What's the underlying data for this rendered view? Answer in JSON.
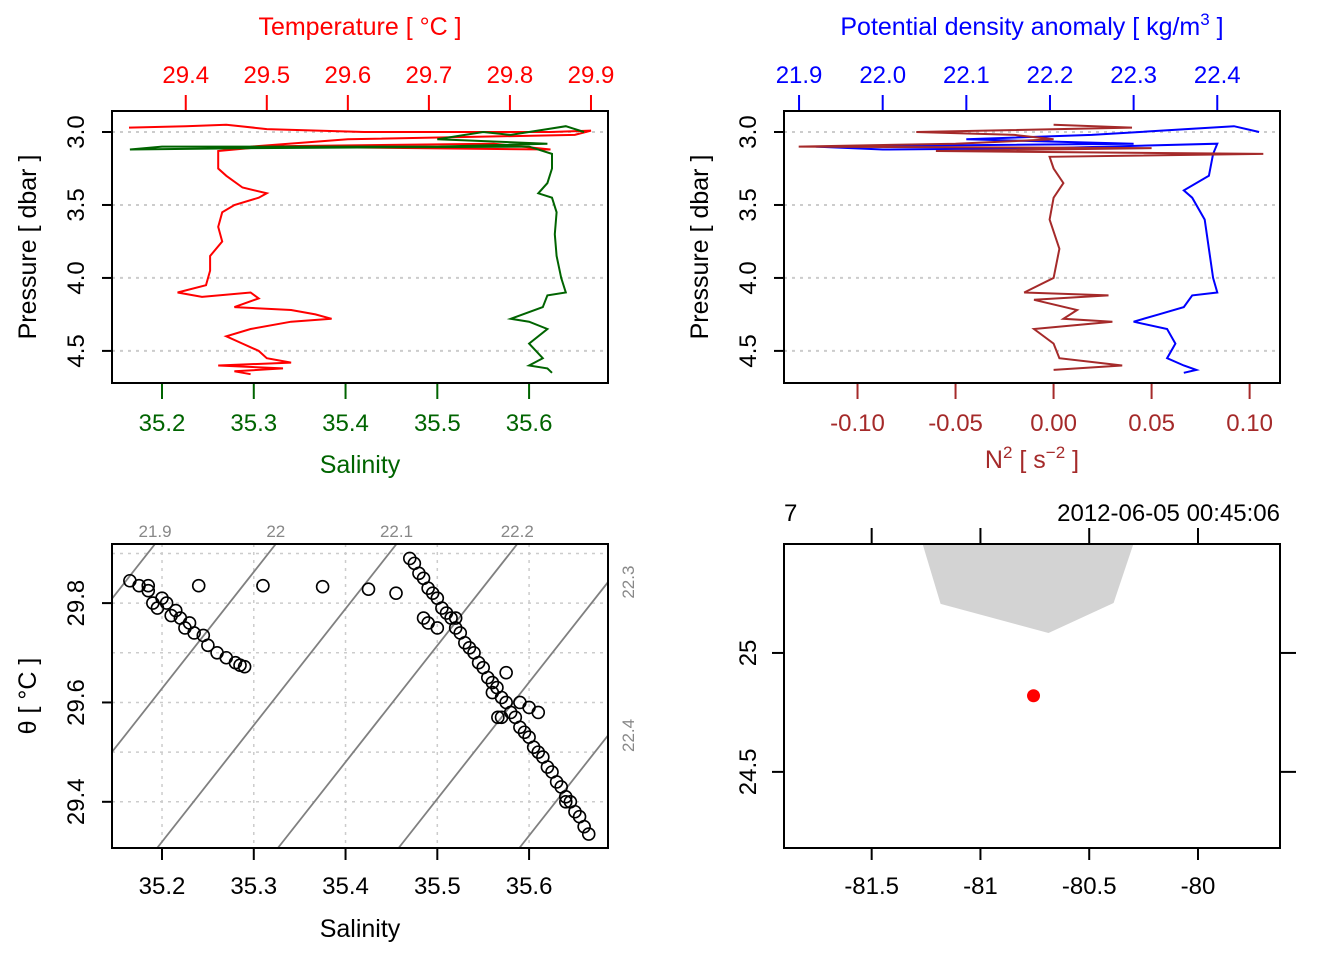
{
  "colors": {
    "temperature": "#ff0000",
    "salinity": "#006400",
    "density": "#0000ff",
    "n2": "#a52a2a",
    "grid": "#cccccc",
    "isopycnal": "#808080",
    "land": "#d3d3d3",
    "station": "#ff0000"
  },
  "chart_data": [
    {
      "type": "line",
      "panel": "profile-temperature-salinity",
      "ylabel": "Pressure [ dbar ]",
      "yticks": [
        3.0,
        3.5,
        4.0,
        4.5
      ],
      "ylim": [
        4.72,
        2.856
      ],
      "y_reversed": true,
      "grid": "horizontal dotted",
      "top_axis": {
        "label": "Temperature [ °C ]",
        "ticks": [
          29.4,
          29.5,
          29.6,
          29.7,
          29.8,
          29.9
        ],
        "lim": [
          29.309,
          29.921
        ]
      },
      "bottom_axis": {
        "label": "Salinity",
        "ticks": [
          35.2,
          35.3,
          35.4,
          35.5,
          35.6
        ],
        "lim": [
          35.1455,
          35.686
        ]
      },
      "series": [
        {
          "name": "Temperature",
          "axis": "top",
          "points": [
            [
              2.97,
              29.33
            ],
            [
              2.96,
              29.4
            ],
            [
              2.95,
              29.45
            ],
            [
              2.98,
              29.5
            ],
            [
              3.0,
              29.62
            ],
            [
              3.0,
              29.85
            ],
            [
              2.99,
              29.9
            ],
            [
              3.02,
              29.88
            ],
            [
              3.05,
              29.6
            ],
            [
              3.1,
              29.48
            ],
            [
              3.08,
              29.78
            ],
            [
              3.12,
              29.85
            ],
            [
              3.1,
              29.5
            ],
            [
              3.13,
              29.44
            ],
            [
              3.2,
              29.44
            ],
            [
              3.25,
              29.44
            ],
            [
              3.3,
              29.45
            ],
            [
              3.38,
              29.47
            ],
            [
              3.42,
              29.5
            ],
            [
              3.45,
              29.49
            ],
            [
              3.5,
              29.46
            ],
            [
              3.55,
              29.445
            ],
            [
              3.65,
              29.44
            ],
            [
              3.75,
              29.445
            ],
            [
              3.85,
              29.43
            ],
            [
              3.95,
              29.43
            ],
            [
              4.05,
              29.425
            ],
            [
              4.1,
              29.39
            ],
            [
              4.13,
              29.42
            ],
            [
              4.1,
              29.48
            ],
            [
              4.14,
              29.49
            ],
            [
              4.2,
              29.46
            ],
            [
              4.22,
              29.53
            ],
            [
              4.25,
              29.56
            ],
            [
              4.28,
              29.58
            ],
            [
              4.3,
              29.53
            ],
            [
              4.35,
              29.48
            ],
            [
              4.4,
              29.45
            ],
            [
              4.45,
              29.47
            ],
            [
              4.5,
              29.49
            ],
            [
              4.55,
              29.5
            ],
            [
              4.58,
              29.53
            ],
            [
              4.6,
              29.44
            ],
            [
              4.62,
              29.52
            ],
            [
              4.64,
              29.46
            ],
            [
              4.66,
              29.48
            ]
          ]
        },
        {
          "name": "Salinity",
          "axis": "bottom",
          "points": [
            [
              3.0,
              35.66
            ],
            [
              2.96,
              35.64
            ],
            [
              3.02,
              35.58
            ],
            [
              3.0,
              35.55
            ],
            [
              3.05,
              35.5
            ],
            [
              3.08,
              35.62
            ],
            [
              3.1,
              35.5
            ],
            [
              3.1,
              35.2
            ],
            [
              3.12,
              35.165
            ],
            [
              3.11,
              35.3
            ],
            [
              3.1,
              35.6
            ],
            [
              3.15,
              35.625
            ],
            [
              3.25,
              35.625
            ],
            [
              3.35,
              35.62
            ],
            [
              3.42,
              35.61
            ],
            [
              3.45,
              35.625
            ],
            [
              3.55,
              35.63
            ],
            [
              3.7,
              35.628
            ],
            [
              3.85,
              35.63
            ],
            [
              4.0,
              35.635
            ],
            [
              4.1,
              35.64
            ],
            [
              4.12,
              35.62
            ],
            [
              4.2,
              35.615
            ],
            [
              4.28,
              35.58
            ],
            [
              4.3,
              35.6
            ],
            [
              4.35,
              35.62
            ],
            [
              4.45,
              35.6
            ],
            [
              4.55,
              35.615
            ],
            [
              4.6,
              35.6
            ],
            [
              4.62,
              35.62
            ],
            [
              4.65,
              35.625
            ]
          ]
        }
      ]
    },
    {
      "type": "line",
      "panel": "profile-density-n2",
      "ylabel": "Pressure [ dbar ]",
      "yticks": [
        3.0,
        3.5,
        4.0,
        4.5
      ],
      "ylim": [
        4.72,
        2.856
      ],
      "y_reversed": true,
      "grid": "horizontal dotted",
      "top_axis": {
        "label_main": "Potential density anomaly [ kg/m",
        "label_sup": "3",
        "label_end": " ]",
        "ticks": [
          21.9,
          22.0,
          22.1,
          22.2,
          22.3,
          22.4
        ],
        "lim": [
          21.882,
          22.475
        ]
      },
      "bottom_axis": {
        "label_main": "N",
        "label_sup": "2",
        "label_mid": " [ s",
        "label_sup2": "−2",
        "label_end": " ]",
        "ticks": [
          -0.1,
          -0.05,
          0.0,
          0.05,
          0.1
        ],
        "lim": [
          -0.1375,
          0.1155
        ]
      },
      "series": [
        {
          "name": "Potential density anomaly",
          "axis": "top",
          "points": [
            [
              3.0,
              22.45
            ],
            [
              2.96,
              22.42
            ],
            [
              3.02,
              22.25
            ],
            [
              3.05,
              22.1
            ],
            [
              3.08,
              22.3
            ],
            [
              3.1,
              21.92
            ],
            [
              3.12,
              22.0
            ],
            [
              3.11,
              22.2
            ],
            [
              3.08,
              22.4
            ],
            [
              3.15,
              22.395
            ],
            [
              3.3,
              22.39
            ],
            [
              3.4,
              22.36
            ],
            [
              3.45,
              22.37
            ],
            [
              3.6,
              22.385
            ],
            [
              3.8,
              22.39
            ],
            [
              4.0,
              22.395
            ],
            [
              4.1,
              22.4
            ],
            [
              4.12,
              22.37
            ],
            [
              4.2,
              22.36
            ],
            [
              4.25,
              22.33
            ],
            [
              4.3,
              22.3
            ],
            [
              4.35,
              22.34
            ],
            [
              4.45,
              22.35
            ],
            [
              4.55,
              22.34
            ],
            [
              4.6,
              22.36
            ],
            [
              4.63,
              22.375
            ],
            [
              4.65,
              22.36
            ]
          ]
        },
        {
          "name": "N2",
          "axis": "bottom",
          "points": [
            [
              2.95,
              0.0
            ],
            [
              2.97,
              0.04
            ],
            [
              3.0,
              -0.07
            ],
            [
              3.02,
              -0.02
            ],
            [
              3.05,
              0.0
            ],
            [
              3.08,
              -0.05
            ],
            [
              3.1,
              -0.13
            ],
            [
              3.11,
              0.05
            ],
            [
              3.13,
              -0.06
            ],
            [
              3.15,
              0.107
            ],
            [
              3.17,
              -0.002
            ],
            [
              3.25,
              0.0
            ],
            [
              3.35,
              0.005
            ],
            [
              3.45,
              0.0
            ],
            [
              3.6,
              -0.002
            ],
            [
              3.8,
              0.003
            ],
            [
              4.0,
              0.0
            ],
            [
              4.1,
              -0.015
            ],
            [
              4.12,
              0.028
            ],
            [
              4.15,
              -0.01
            ],
            [
              4.22,
              0.012
            ],
            [
              4.28,
              0.005
            ],
            [
              4.3,
              0.03
            ],
            [
              4.35,
              -0.01
            ],
            [
              4.45,
              0.0
            ],
            [
              4.55,
              0.003
            ],
            [
              4.6,
              0.035
            ],
            [
              4.63,
              0.0
            ]
          ]
        }
      ]
    },
    {
      "type": "scatter",
      "panel": "ts-diagram",
      "xlabel": "Salinity",
      "ylabel": "θ [ °C ]",
      "xticks": [
        35.2,
        35.3,
        35.4,
        35.5,
        35.6
      ],
      "yticks": [
        29.4,
        29.6,
        29.8
      ],
      "xlim": [
        35.1455,
        35.686
      ],
      "ylim": [
        29.307,
        29.919
      ],
      "grid": "dotted",
      "isopycnals": [
        21.9,
        22.0,
        22.1,
        22.2,
        22.3,
        22.4
      ],
      "isopycnal_labels": [
        "21.9",
        "22",
        "22.1",
        "22.2",
        "22.3",
        "22.4"
      ],
      "points": [
        [
          35.165,
          29.845
        ],
        [
          35.175,
          29.835
        ],
        [
          35.185,
          29.825
        ],
        [
          35.19,
          29.8
        ],
        [
          35.195,
          29.79
        ],
        [
          35.205,
          29.8
        ],
        [
          35.21,
          29.775
        ],
        [
          35.22,
          29.77
        ],
        [
          35.225,
          29.75
        ],
        [
          35.235,
          29.74
        ],
        [
          35.245,
          29.735
        ],
        [
          35.25,
          29.715
        ],
        [
          35.26,
          29.7
        ],
        [
          35.27,
          29.69
        ],
        [
          35.28,
          29.68
        ],
        [
          35.29,
          29.672
        ],
        [
          35.285,
          29.675
        ],
        [
          35.2,
          29.81
        ],
        [
          35.215,
          29.785
        ],
        [
          35.23,
          29.76
        ],
        [
          35.185,
          29.835
        ],
        [
          35.24,
          29.835
        ],
        [
          35.31,
          29.835
        ],
        [
          35.375,
          29.833
        ],
        [
          35.425,
          29.828
        ],
        [
          35.455,
          29.82
        ],
        [
          35.47,
          29.89
        ],
        [
          35.475,
          29.88
        ],
        [
          35.48,
          29.86
        ],
        [
          35.485,
          29.85
        ],
        [
          35.49,
          29.83
        ],
        [
          35.495,
          29.82
        ],
        [
          35.5,
          29.81
        ],
        [
          35.505,
          29.79
        ],
        [
          35.51,
          29.78
        ],
        [
          35.515,
          29.77
        ],
        [
          35.52,
          29.75
        ],
        [
          35.525,
          29.74
        ],
        [
          35.53,
          29.72
        ],
        [
          35.535,
          29.71
        ],
        [
          35.54,
          29.7
        ],
        [
          35.545,
          29.68
        ],
        [
          35.55,
          29.67
        ],
        [
          35.555,
          29.65
        ],
        [
          35.56,
          29.64
        ],
        [
          35.565,
          29.63
        ],
        [
          35.57,
          29.61
        ],
        [
          35.575,
          29.6
        ],
        [
          35.58,
          29.58
        ],
        [
          35.585,
          29.57
        ],
        [
          35.59,
          29.55
        ],
        [
          35.595,
          29.54
        ],
        [
          35.6,
          29.53
        ],
        [
          35.605,
          29.51
        ],
        [
          35.61,
          29.5
        ],
        [
          35.615,
          29.49
        ],
        [
          35.62,
          29.47
        ],
        [
          35.625,
          29.46
        ],
        [
          35.63,
          29.44
        ],
        [
          35.635,
          29.43
        ],
        [
          35.64,
          29.41
        ],
        [
          35.645,
          29.4
        ],
        [
          35.65,
          29.38
        ],
        [
          35.655,
          29.37
        ],
        [
          35.66,
          29.35
        ],
        [
          35.665,
          29.335
        ],
        [
          35.49,
          29.76
        ],
        [
          35.485,
          29.77
        ],
        [
          35.5,
          29.75
        ],
        [
          35.566,
          29.57
        ],
        [
          35.575,
          29.66
        ],
        [
          35.57,
          29.57
        ],
        [
          35.59,
          29.6
        ],
        [
          35.61,
          29.58
        ],
        [
          35.6,
          29.59
        ],
        [
          35.64,
          29.4
        ],
        [
          35.52,
          29.77
        ],
        [
          35.56,
          29.62
        ]
      ]
    },
    {
      "type": "map",
      "panel": "station-map",
      "xticks": [
        -81.5,
        -81,
        -80.5,
        -80
      ],
      "xtick_labels": [
        "-81.5",
        "-81",
        "-80.5",
        "-80"
      ],
      "yticks": [
        24.5,
        25
      ],
      "ytick_labels": [
        "24.5",
        "25"
      ],
      "xlim": [
        -81.903,
        -79.623
      ],
      "ylim": [
        24.18,
        25.458
      ],
      "station_label": "7",
      "datetime": "2012-06-05 00:45:06",
      "station": {
        "lon": -80.756,
        "lat": 24.82
      },
      "land": [
        [
          -81.266,
          25.458
        ],
        [
          -81.183,
          25.206
        ],
        [
          -80.687,
          25.084
        ],
        [
          -80.388,
          25.21
        ],
        [
          -80.297,
          25.458
        ]
      ]
    }
  ]
}
